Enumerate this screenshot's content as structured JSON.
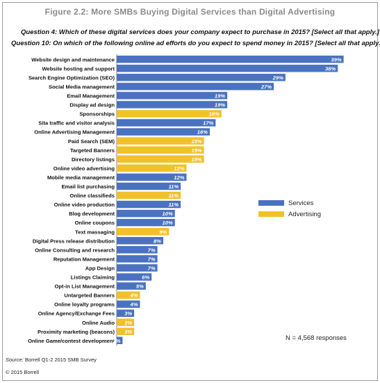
{
  "title": "Figure 2.2: More SMBs Buying Digital Services than Digital Advertising",
  "question1": "Question 4: Which of these digital services does your company expect to purchase in 2015? [Select all that apply.]",
  "question2": "Question 10: On which of the following online ad efforts do you expect to spend money in 2015? [Select all that apply.]",
  "note": "N = 4,568 responses",
  "source_key": "Source:",
  "source_text": "Borrell Q1-2 2015 SMB Survey",
  "copyright": "© 2015 Borrell",
  "colors": {
    "services": "#4a72c0",
    "advertising": "#f1c12a"
  },
  "chart_data": {
    "type": "bar",
    "orientation": "horizontal",
    "xlim": [
      0,
      40
    ],
    "series": [
      {
        "name": "Services",
        "color": "#4a72c0"
      },
      {
        "name": "Advertising",
        "color": "#f1c12a"
      }
    ],
    "bars": [
      {
        "label": "Website design and maintenance",
        "value": 39,
        "series": "Services"
      },
      {
        "label": "Website hosting and support",
        "value": 38,
        "series": "Services"
      },
      {
        "label": "Search Engine Optimization (SEO)",
        "value": 29,
        "series": "Services"
      },
      {
        "label": "Social Media management",
        "value": 27,
        "series": "Services"
      },
      {
        "label": "Email Management",
        "value": 19,
        "series": "Services"
      },
      {
        "label": "Display ad design",
        "value": 19,
        "series": "Services"
      },
      {
        "label": "Sponsorships",
        "value": 18,
        "series": "Advertising"
      },
      {
        "label": "Sita traffic and visitor analysis",
        "value": 17,
        "series": "Services"
      },
      {
        "label": "Online Advertising Management",
        "value": 16,
        "series": "Services"
      },
      {
        "label": "Paid Search (SEM)",
        "value": 15,
        "series": "Advertising"
      },
      {
        "label": "Targeted Banners",
        "value": 15,
        "series": "Advertising"
      },
      {
        "label": "Directory listings",
        "value": 15,
        "series": "Advertising"
      },
      {
        "label": "Online video advertising",
        "value": 12,
        "series": "Advertising"
      },
      {
        "label": "Mobile media management",
        "value": 12,
        "series": "Services"
      },
      {
        "label": "Email list purchasing",
        "value": 11,
        "series": "Services"
      },
      {
        "label": "Online classifieds",
        "value": 11,
        "series": "Advertising"
      },
      {
        "label": "Online video production",
        "value": 11,
        "series": "Services"
      },
      {
        "label": "Blog development",
        "value": 10,
        "series": "Services"
      },
      {
        "label": "Online coupons",
        "value": 10,
        "series": "Services"
      },
      {
        "label": "Text massaging",
        "value": 9,
        "series": "Advertising"
      },
      {
        "label": "Digital Press release distribution",
        "value": 8,
        "series": "Services"
      },
      {
        "label": "Online Consulting and research",
        "value": 7,
        "series": "Services"
      },
      {
        "label": "Reputation Management",
        "value": 7,
        "series": "Services"
      },
      {
        "label": "App Design",
        "value": 7,
        "series": "Services"
      },
      {
        "label": "Listings Claiming",
        "value": 6,
        "series": "Services"
      },
      {
        "label": "Opt-in List Management",
        "value": 5,
        "series": "Services"
      },
      {
        "label": "Untargeted Banners",
        "value": 4,
        "series": "Advertising"
      },
      {
        "label": "Online loyalty programs",
        "value": 4,
        "series": "Services"
      },
      {
        "label": "Online Agency/Exchange Fees",
        "value": 3,
        "series": "Services"
      },
      {
        "label": "Online Audio",
        "value": 3,
        "series": "Advertising"
      },
      {
        "label": "Proximity marketing (beacons)",
        "value": 3,
        "series": "Advertising"
      },
      {
        "label": "Online Game/contest development",
        "value": 1,
        "series": "Services"
      }
    ]
  }
}
